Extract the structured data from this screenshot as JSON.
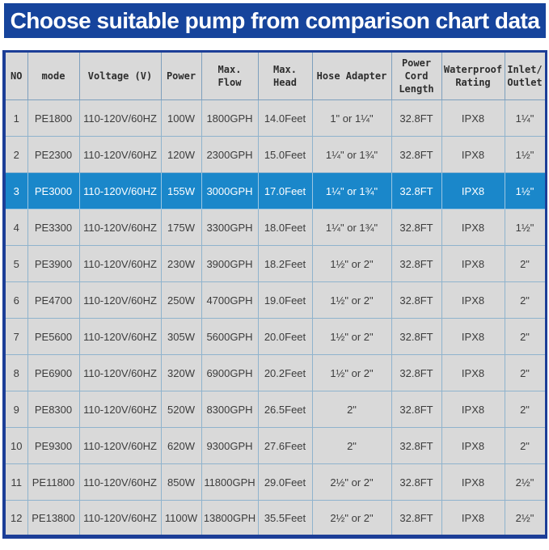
{
  "chart_data": {
    "type": "table",
    "title": "Choose suitable pump from comparison chart data",
    "columns": [
      "NO",
      "mode",
      "Voltage (V)",
      "Power",
      "Max.\nFlow",
      "Max.\nHead",
      "Hose Adapter",
      "Power\nCord\nLength",
      "Waterproof\nRating",
      "Inlet/\nOutlet"
    ],
    "rows": [
      [
        "1",
        "PE1800",
        "110-120V/60HZ",
        "100W",
        "1800GPH",
        "14.0Feet",
        "1\" or 1¼\"",
        "32.8FT",
        "IPX8",
        "1¼\""
      ],
      [
        "2",
        "PE2300",
        "110-120V/60HZ",
        "120W",
        "2300GPH",
        "15.0Feet",
        "1¼\" or 1¾\"",
        "32.8FT",
        "IPX8",
        "1½\""
      ],
      [
        "3",
        "PE3000",
        "110-120V/60HZ",
        "155W",
        "3000GPH",
        "17.0Feet",
        "1¼\" or 1¾\"",
        "32.8FT",
        "IPX8",
        "1½\""
      ],
      [
        "4",
        "PE3300",
        "110-120V/60HZ",
        "175W",
        "3300GPH",
        "18.0Feet",
        "1¼\" or 1¾\"",
        "32.8FT",
        "IPX8",
        "1½\""
      ],
      [
        "5",
        "PE3900",
        "110-120V/60HZ",
        "230W",
        "3900GPH",
        "18.2Feet",
        "1½\" or 2\"",
        "32.8FT",
        "IPX8",
        "2\""
      ],
      [
        "6",
        "PE4700",
        "110-120V/60HZ",
        "250W",
        "4700GPH",
        "19.0Feet",
        "1½\" or 2\"",
        "32.8FT",
        "IPX8",
        "2\""
      ],
      [
        "7",
        "PE5600",
        "110-120V/60HZ",
        "305W",
        "5600GPH",
        "20.0Feet",
        "1½\" or 2\"",
        "32.8FT",
        "IPX8",
        "2\""
      ],
      [
        "8",
        "PE6900",
        "110-120V/60HZ",
        "320W",
        "6900GPH",
        "20.2Feet",
        "1½\" or 2\"",
        "32.8FT",
        "IPX8",
        "2\""
      ],
      [
        "9",
        "PE8300",
        "110-120V/60HZ",
        "520W",
        "8300GPH",
        "26.5Feet",
        "2\"",
        "32.8FT",
        "IPX8",
        "2\""
      ],
      [
        "10",
        "PE9300",
        "110-120V/60HZ",
        "620W",
        "9300GPH",
        "27.6Feet",
        "2\"",
        "32.8FT",
        "IPX8",
        "2\""
      ],
      [
        "11",
        "PE11800",
        "110-120V/60HZ",
        "850W",
        "11800GPH",
        "29.0Feet",
        "2½\" or 2\"",
        "32.8FT",
        "IPX8",
        "2½\""
      ],
      [
        "12",
        "PE13800",
        "110-120V/60HZ",
        "1100W",
        "13800GPH",
        "35.5Feet",
        "2½\" or 2\"",
        "32.8FT",
        "IPX8",
        "2½\""
      ]
    ],
    "highlighted_row_index": 2,
    "highlighted_row_model": "PE3000",
    "colors": {
      "banner_bg": "#16449c",
      "banner_text": "#ffffff",
      "table_frame": "#1c3e97",
      "cell_bg": "#d9d9d9",
      "cell_border": "#8fb3cd",
      "highlight_bg": "#1a87ca",
      "highlight_text": "#ffffff"
    },
    "layout_hints": {
      "grid": true,
      "legend": "none",
      "header_rows": 1
    }
  }
}
